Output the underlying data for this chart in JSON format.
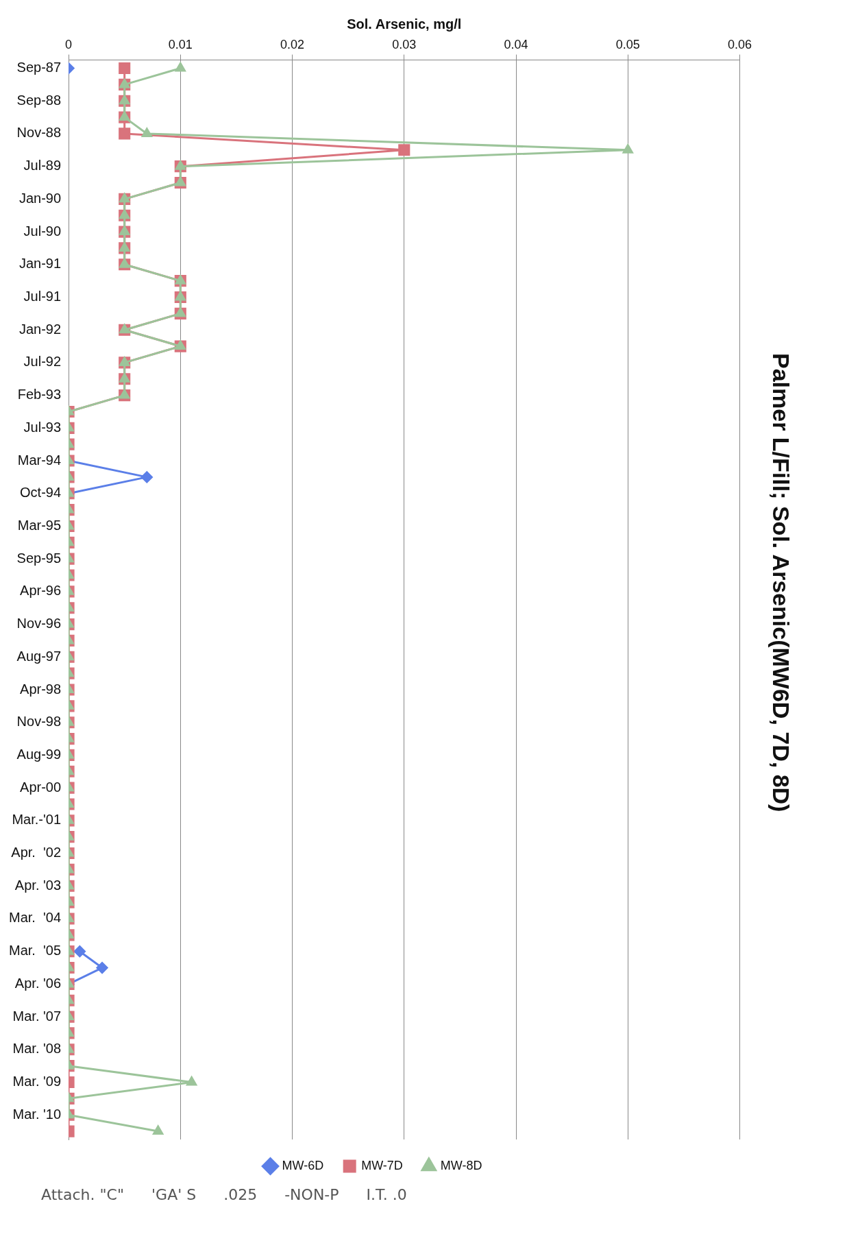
{
  "chart_data": {
    "type": "line",
    "title": "Palmer L/Fill; Sol. Arsenic(MW6D, 7D, 8D)",
    "xlabel": "Sol. Arsenic, mg/l",
    "orientation": "horizontal",
    "categories": [
      "Sep-87",
      null,
      "Sep-88",
      null,
      "Nov-88",
      null,
      "Jul-89",
      null,
      "Jan-90",
      null,
      "Jul-90",
      null,
      "Jan-91",
      null,
      "Jul-91",
      null,
      "Jan-92",
      null,
      "Jul-92",
      null,
      "Feb-93",
      null,
      "Jul-93",
      null,
      "Mar-94",
      null,
      "Oct-94",
      null,
      "Mar-95",
      null,
      "Sep-95",
      null,
      "Apr-96",
      null,
      "Nov-96",
      null,
      "Aug-97",
      null,
      "Apr-98",
      null,
      "Nov-98",
      null,
      "Aug-99",
      null,
      "Apr-00",
      null,
      "Mar.-'01",
      null,
      "Apr.  '02",
      null,
      "Apr. '03",
      null,
      "Mar.  '04",
      null,
      "Mar.  '05",
      null,
      "Apr. '06",
      null,
      "Mar. '07",
      null,
      "Mar. '08",
      null,
      "Mar. '09",
      null,
      "Mar. '10",
      null
    ],
    "series": [
      {
        "name": "MW-6D",
        "color": "#5b7fe8",
        "marker": "diamond",
        "values": [
          0,
          null,
          null,
          null,
          null,
          null,
          null,
          null,
          null,
          null,
          null,
          null,
          null,
          null,
          null,
          null,
          null,
          null,
          null,
          null,
          null,
          null,
          null,
          null,
          0,
          0.007,
          0,
          null,
          null,
          null,
          null,
          null,
          null,
          null,
          null,
          null,
          null,
          null,
          null,
          null,
          null,
          null,
          null,
          null,
          null,
          null,
          null,
          null,
          null,
          null,
          null,
          null,
          null,
          null,
          0.001,
          0.003,
          0,
          null,
          null,
          null,
          null,
          null,
          null,
          null,
          null,
          null
        ]
      },
      {
        "name": "MW-7D",
        "color": "#d9737c",
        "marker": "square",
        "values": [
          0.005,
          0.005,
          0.005,
          0.005,
          0.005,
          0.03,
          0.01,
          0.01,
          0.005,
          0.005,
          0.005,
          0.005,
          0.005,
          0.01,
          0.01,
          0.01,
          0.005,
          0.01,
          0.005,
          0.005,
          0.005,
          0,
          0,
          0,
          0,
          0,
          0,
          0,
          0,
          0,
          0,
          0,
          0,
          0,
          0,
          0,
          0,
          0,
          0,
          0,
          0,
          0,
          0,
          0,
          0,
          0,
          0,
          0,
          0,
          0,
          0,
          0,
          0,
          0,
          0,
          0,
          0,
          0,
          0,
          0,
          0,
          0,
          0,
          0,
          0,
          0
        ]
      },
      {
        "name": "MW-8D",
        "color": "#9cc49a",
        "marker": "triangle",
        "values": [
          0.01,
          0.005,
          0.005,
          0.005,
          0.007,
          0.05,
          0.01,
          0.01,
          0.005,
          0.005,
          0.005,
          0.005,
          0.005,
          0.01,
          0.01,
          0.01,
          0.005,
          0.01,
          0.005,
          0.005,
          0.005,
          0,
          0,
          0,
          0,
          0,
          0,
          0,
          0,
          0,
          0,
          0,
          0,
          0,
          0,
          0,
          0,
          0,
          0,
          0,
          0,
          0,
          0,
          0,
          0,
          0,
          0,
          0,
          0,
          0,
          0,
          0,
          0,
          0,
          0,
          0,
          0,
          0,
          0,
          0,
          0,
          0,
          0.011,
          0,
          0,
          0.008
        ]
      }
    ],
    "xlim": [
      0,
      0.06
    ],
    "xticks": [
      0,
      0.01,
      0.02,
      0.03,
      0.04,
      0.05,
      0.06
    ],
    "grid": "x",
    "legend": "bottom",
    "annotations": [
      "Attach. \"C\"",
      "'GA' S",
      ".025",
      "-NON-P",
      "I.T. .0"
    ]
  }
}
